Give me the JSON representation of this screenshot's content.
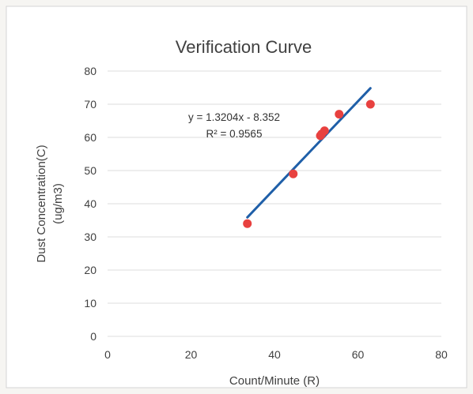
{
  "chart_data": {
    "type": "scatter",
    "title": "Verification Curve",
    "xlabel": "Count/Minute (R)",
    "ylabel_lines": [
      "Dust Concentration(C)",
      "(ug/m3)"
    ],
    "xlim": [
      0,
      80
    ],
    "ylim": [
      0,
      80
    ],
    "xticks": [
      "0",
      "20",
      "40",
      "60",
      "80"
    ],
    "yticks": [
      "0",
      "10",
      "20",
      "30",
      "40",
      "50",
      "60",
      "70",
      "80"
    ],
    "grid": "horizontal",
    "points": [
      {
        "x": 33.5,
        "y": 34
      },
      {
        "x": 44.5,
        "y": 49
      },
      {
        "x": 51.0,
        "y": 60.5
      },
      {
        "x": 51.3,
        "y": 61
      },
      {
        "x": 52.0,
        "y": 62
      },
      {
        "x": 55.5,
        "y": 67
      },
      {
        "x": 63.0,
        "y": 70
      }
    ],
    "trendline": {
      "slope": 1.3204,
      "intercept": -8.352,
      "x_range": [
        33.5,
        63
      ],
      "equation_text": "y = 1.3204x - 8.352",
      "r2_text": "R² = 0.9565"
    },
    "colors": {
      "points": "#e8413f",
      "trendline": "#1f5fa8"
    }
  }
}
